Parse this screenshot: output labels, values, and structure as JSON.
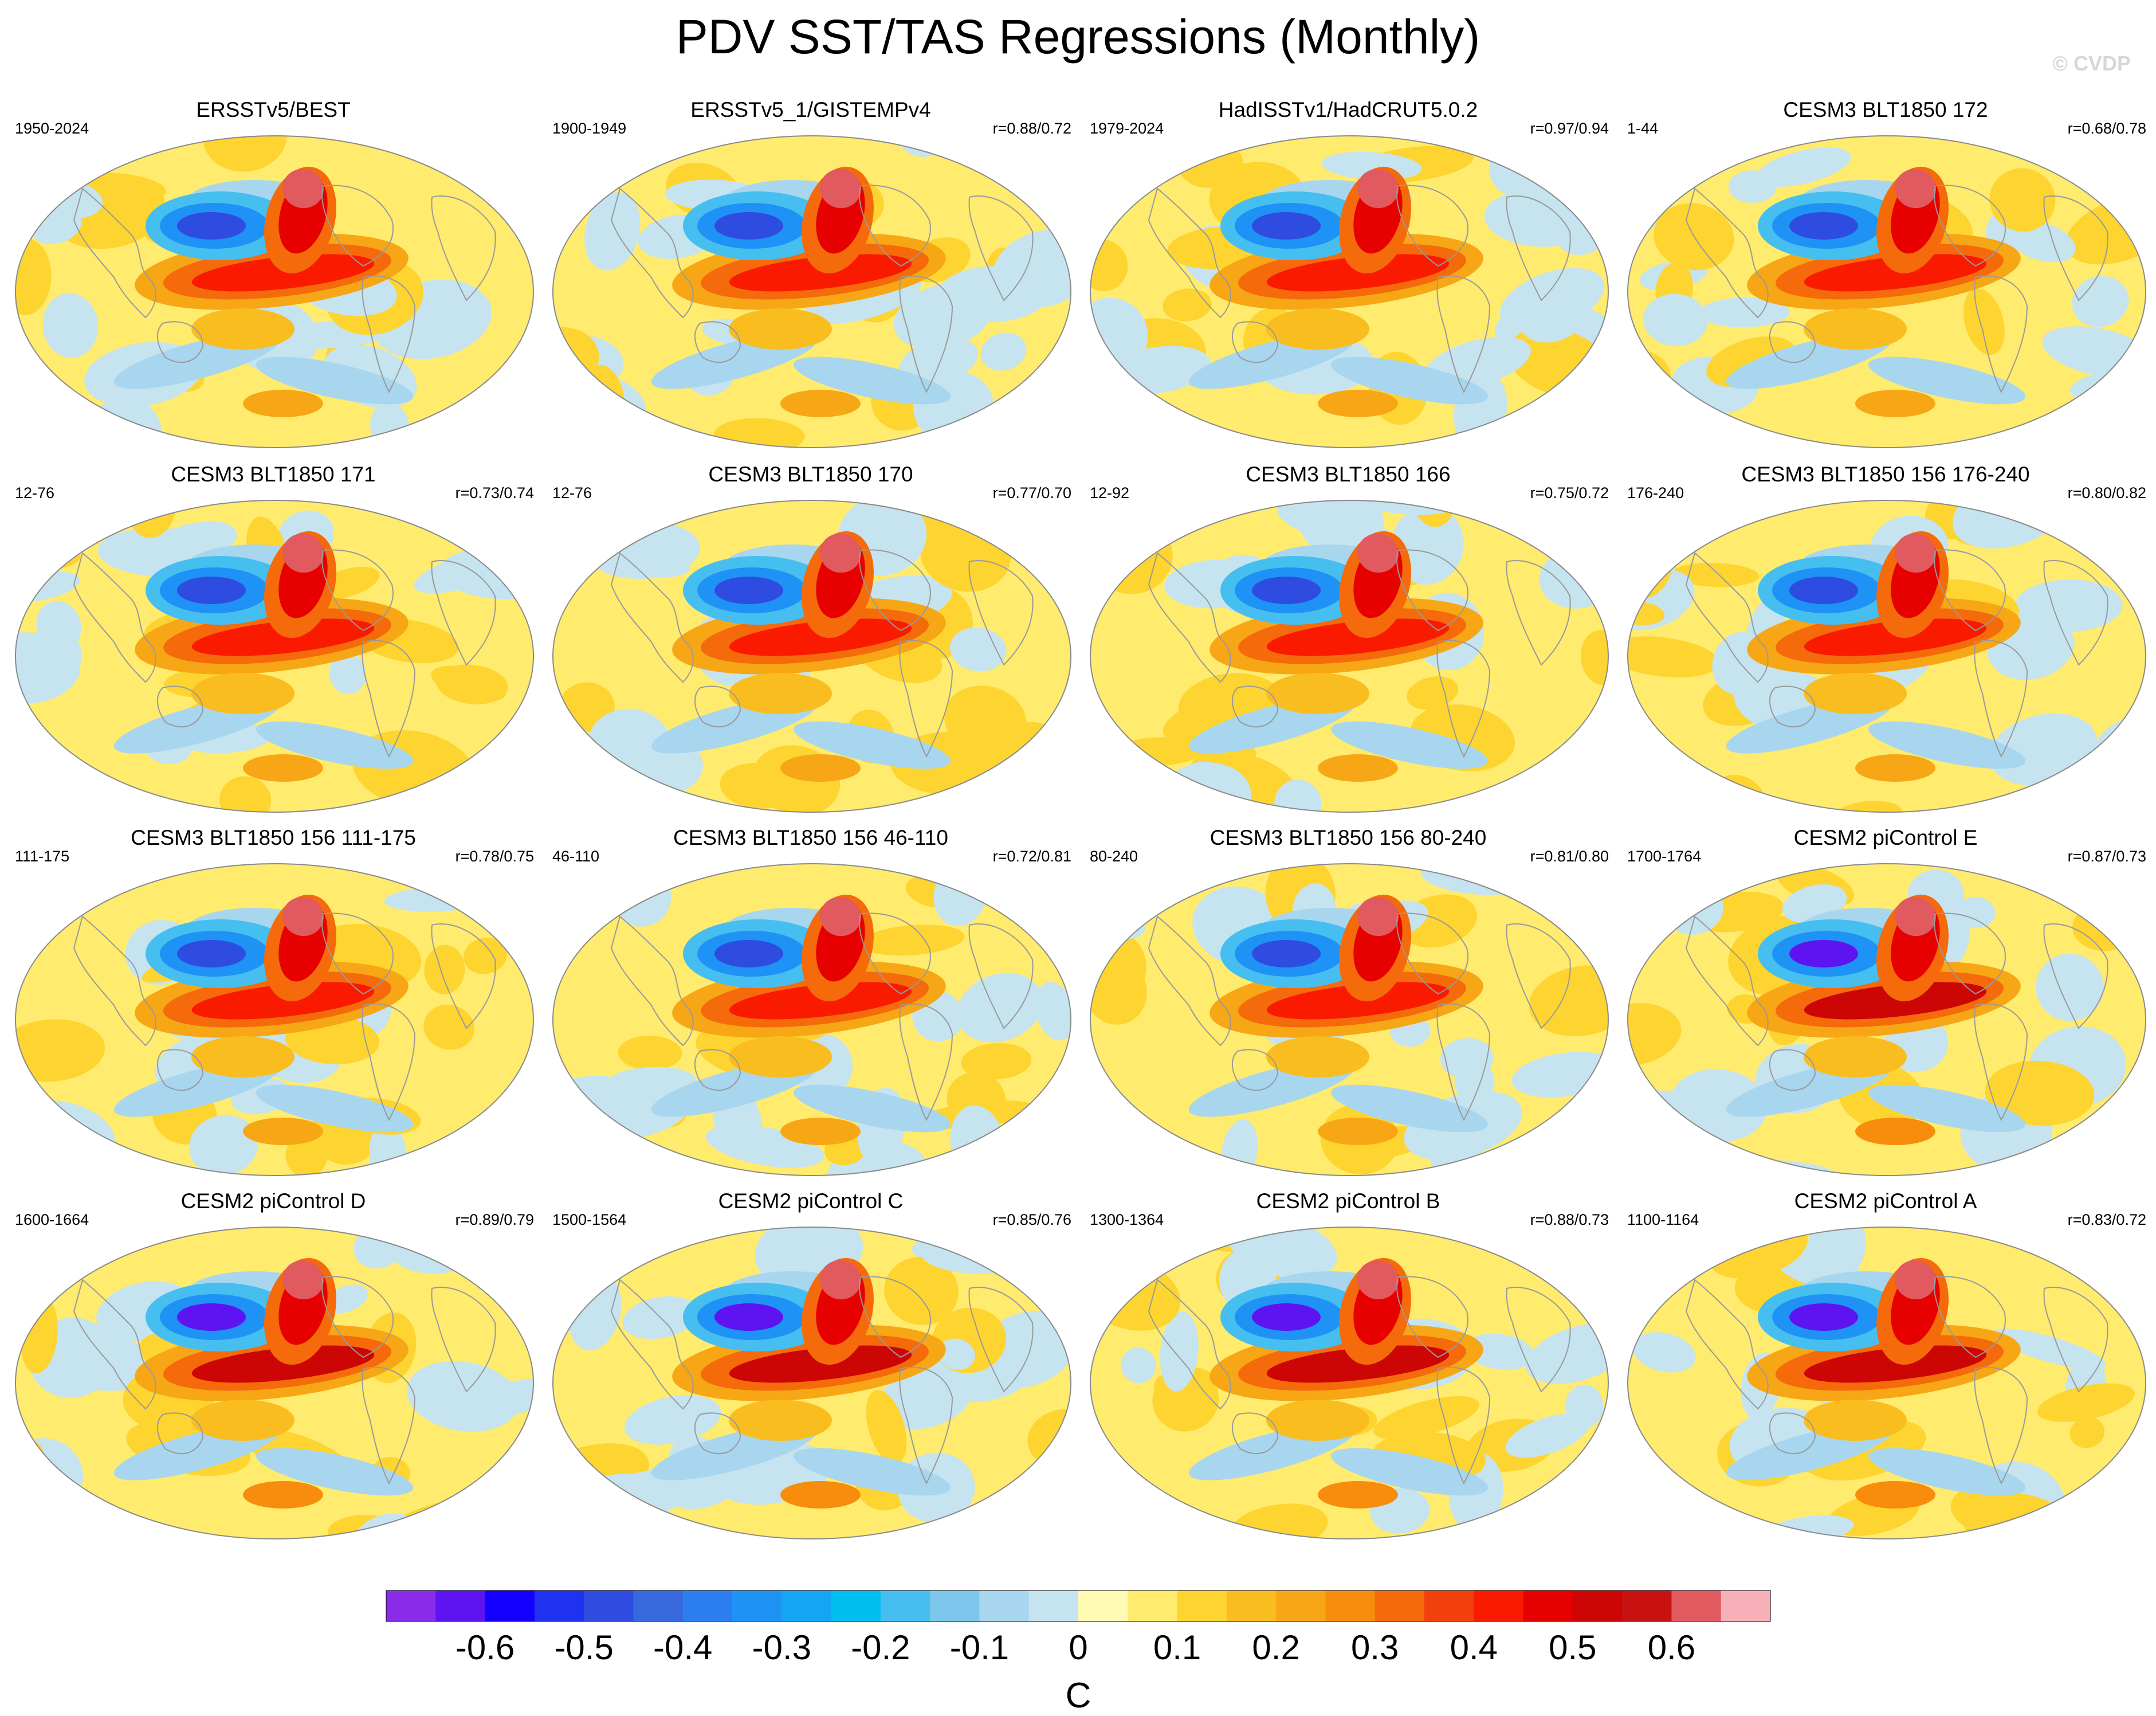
{
  "figure": {
    "title": "PDV SST/TAS Regressions (Monthly)",
    "watermark": "© CVDP"
  },
  "panels": [
    {
      "title": "ERSSTv5/BEST",
      "years": "1950-2024",
      "corr": ""
    },
    {
      "title": "ERSSTv5_1/GISTEMPv4",
      "years": "1900-1949",
      "corr": "r=0.88/0.72"
    },
    {
      "title": "HadISSTv1/HadCRUT5.0.2",
      "years": "1979-2024",
      "corr": "r=0.97/0.94"
    },
    {
      "title": "CESM3 BLT1850 172",
      "years": "1-44",
      "corr": "r=0.68/0.78"
    },
    {
      "title": "CESM3 BLT1850 171",
      "years": "12-76",
      "corr": "r=0.73/0.74"
    },
    {
      "title": "CESM3 BLT1850 170",
      "years": "12-76",
      "corr": "r=0.77/0.70"
    },
    {
      "title": "CESM3 BLT1850 166",
      "years": "12-92",
      "corr": "r=0.75/0.72"
    },
    {
      "title": "CESM3 BLT1850 156 176-240",
      "years": "176-240",
      "corr": "r=0.80/0.82"
    },
    {
      "title": "CESM3 BLT1850 156 111-175",
      "years": "111-175",
      "corr": "r=0.78/0.75"
    },
    {
      "title": "CESM3 BLT1850 156 46-110",
      "years": "46-110",
      "corr": "r=0.72/0.81"
    },
    {
      "title": "CESM3 BLT1850 156 80-240",
      "years": "80-240",
      "corr": "r=0.81/0.80"
    },
    {
      "title": "CESM2 piControl E",
      "years": "1700-1764",
      "corr": "r=0.87/0.73"
    },
    {
      "title": "CESM2 piControl D",
      "years": "1600-1664",
      "corr": "r=0.89/0.79"
    },
    {
      "title": "CESM2 piControl C",
      "years": "1500-1564",
      "corr": "r=0.85/0.76"
    },
    {
      "title": "CESM2 piControl B",
      "years": "1300-1364",
      "corr": "r=0.88/0.73"
    },
    {
      "title": "CESM2 piControl A",
      "years": "1100-1164",
      "corr": "r=0.83/0.72"
    }
  ],
  "chart_data": {
    "type": "heatmap",
    "title": "PDV SST/TAS Regressions (Monthly)",
    "layout": "4x4 grid of global maps",
    "colorbar": {
      "unit": "C",
      "levels": [
        -0.65,
        -0.6,
        -0.55,
        -0.5,
        -0.45,
        -0.4,
        -0.35,
        -0.3,
        -0.25,
        -0.2,
        -0.15,
        -0.1,
        -0.05,
        0,
        0.05,
        0.1,
        0.15,
        0.2,
        0.25,
        0.3,
        0.35,
        0.4,
        0.45,
        0.5,
        0.55,
        0.6,
        0.65
      ],
      "tick_labels": [
        "-0.6",
        "-0.5",
        "-0.4",
        "-0.3",
        "-0.2",
        "-0.1",
        "0",
        "0.1",
        "0.2",
        "0.3",
        "0.4",
        "0.5",
        "0.6"
      ],
      "tick_values": [
        -0.6,
        -0.5,
        -0.4,
        -0.3,
        -0.2,
        -0.1,
        0,
        0.1,
        0.2,
        0.3,
        0.4,
        0.5,
        0.6
      ],
      "colors": [
        "#8a2be8",
        "#5d14f0",
        "#1400ff",
        "#1e32f0",
        "#2e4ce0",
        "#3768dc",
        "#2c7ef0",
        "#1f92f5",
        "#14a6f2",
        "#00bef0",
        "#46bff0",
        "#7dc6ec",
        "#a8d6ee",
        "#c6e3f0",
        "#fffbb4",
        "#ffeb6e",
        "#fdd430",
        "#f9bd20",
        "#f7a616",
        "#f88c0c",
        "#f56a0a",
        "#f2400c",
        "#fa1a00",
        "#e60000",
        "#cc0505",
        "#c81212",
        "#e05a60",
        "#f8b0b8"
      ]
    }
  }
}
